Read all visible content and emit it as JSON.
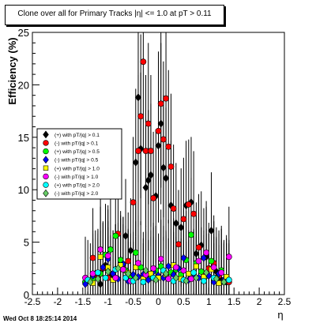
{
  "chart_data": {
    "type": "scatter",
    "title": "Clone  over all for Primary Tracks |η| <= 1.0 at pT > 0.11",
    "xlabel": "η",
    "ylabel": "Efficiency (%)",
    "xlim": [
      -2.5,
      2.5
    ],
    "ylim": [
      0,
      25
    ],
    "xticks": [
      "-2.5",
      "-2",
      "-1.5",
      "-1",
      "-0.5",
      "0",
      "0.5",
      "1",
      "1.5",
      "2",
      "2.5"
    ],
    "yticks": [
      "0",
      "5",
      "10",
      "15",
      "20",
      "25"
    ],
    "grid": false,
    "legend_position": "left-middle",
    "series": [
      {
        "name": "(+) with pT/|q| > 0.1",
        "color": "#000000",
        "marker": "diamond",
        "points": [
          [
            -1.45,
            1.2
          ],
          [
            -1.25,
            2.0
          ],
          [
            -1.15,
            1.0
          ],
          [
            -1.05,
            2.8
          ],
          [
            -0.95,
            1.7
          ],
          [
            -0.85,
            2.4
          ],
          [
            -0.75,
            3.0
          ],
          [
            -0.65,
            5.6
          ],
          [
            -0.55,
            4.2
          ],
          [
            -0.45,
            12.6
          ],
          [
            -0.4,
            18.8
          ],
          [
            -0.35,
            13.9
          ],
          [
            -0.25,
            10.2
          ],
          [
            -0.2,
            10.9
          ],
          [
            -0.15,
            11.4
          ],
          [
            -0.05,
            9.4
          ],
          [
            0.0,
            14.2
          ],
          [
            0.05,
            16.3
          ],
          [
            0.1,
            12.1
          ],
          [
            0.15,
            11.1
          ],
          [
            0.25,
            8.5
          ],
          [
            0.35,
            6.8
          ],
          [
            0.45,
            6.4
          ],
          [
            0.55,
            8.5
          ],
          [
            0.65,
            8.8
          ],
          [
            0.75,
            3.9
          ],
          [
            0.85,
            4.7
          ],
          [
            0.95,
            3.6
          ],
          [
            1.05,
            6.1
          ],
          [
            1.15,
            2.2
          ],
          [
            1.25,
            1.4
          ],
          [
            1.35,
            1.2
          ]
        ]
      },
      {
        "name": "(-) with pT/|q| > 0.1",
        "color": "#ff0000",
        "marker": "circle",
        "points": [
          [
            -1.45,
            1.2
          ],
          [
            -1.3,
            3.5
          ],
          [
            -1.2,
            1.8
          ],
          [
            -1.1,
            2.5
          ],
          [
            -1.0,
            1.6
          ],
          [
            -0.9,
            2.0
          ],
          [
            -0.8,
            5.8
          ],
          [
            -0.7,
            2.9
          ],
          [
            -0.6,
            3.2
          ],
          [
            -0.5,
            8.8
          ],
          [
            -0.4,
            13.7
          ],
          [
            -0.35,
            17.0
          ],
          [
            -0.3,
            22.2
          ],
          [
            -0.25,
            13.7
          ],
          [
            -0.2,
            16.3
          ],
          [
            -0.15,
            13.7
          ],
          [
            -0.1,
            9.2
          ],
          [
            0.0,
            15.6
          ],
          [
            0.05,
            18.2
          ],
          [
            0.1,
            14.8
          ],
          [
            0.15,
            18.7
          ],
          [
            0.2,
            14.1
          ],
          [
            0.25,
            12.2
          ],
          [
            0.3,
            8.2
          ],
          [
            0.4,
            4.8
          ],
          [
            0.5,
            7.2
          ],
          [
            0.6,
            8.6
          ],
          [
            0.7,
            7.7
          ],
          [
            0.8,
            4.5
          ],
          [
            0.9,
            2.0
          ],
          [
            1.0,
            2.5
          ],
          [
            1.1,
            3.0
          ],
          [
            1.2,
            1.8
          ],
          [
            1.3,
            1.3
          ],
          [
            1.4,
            1.2
          ]
        ]
      },
      {
        "name": "(+) with pT/|q| > 0.5",
        "color": "#00ff00",
        "marker": "circle",
        "points": [
          [
            -1.45,
            1.2
          ],
          [
            -1.3,
            1.5
          ],
          [
            -1.15,
            2.0
          ],
          [
            -1.05,
            3.8
          ],
          [
            -0.95,
            4.3
          ],
          [
            -0.85,
            5.6
          ],
          [
            -0.75,
            3.3
          ],
          [
            -0.65,
            2.3
          ],
          [
            -0.55,
            1.8
          ],
          [
            -0.45,
            4.0
          ],
          [
            -0.35,
            2.6
          ],
          [
            -0.25,
            2.0
          ],
          [
            -0.15,
            1.6
          ],
          [
            -0.05,
            2.3
          ],
          [
            0.05,
            2.7
          ],
          [
            0.15,
            1.7
          ],
          [
            0.25,
            2.1
          ],
          [
            0.35,
            2.4
          ],
          [
            0.45,
            1.9
          ],
          [
            0.55,
            3.3
          ],
          [
            0.65,
            5.7
          ],
          [
            0.75,
            3.0
          ],
          [
            0.85,
            2.2
          ],
          [
            0.95,
            1.8
          ],
          [
            1.05,
            3.2
          ],
          [
            1.15,
            1.6
          ],
          [
            1.25,
            2.3
          ],
          [
            1.35,
            1.5
          ]
        ]
      },
      {
        "name": "(-) with pT/|q| > 0.5",
        "color": "#0000ff",
        "marker": "diamond",
        "points": [
          [
            -1.45,
            1.0
          ],
          [
            -1.3,
            1.8
          ],
          [
            -1.2,
            2.0
          ],
          [
            -1.1,
            2.6
          ],
          [
            -1.0,
            3.4
          ],
          [
            -0.9,
            2.0
          ],
          [
            -0.8,
            1.5
          ],
          [
            -0.7,
            2.9
          ],
          [
            -0.6,
            1.3
          ],
          [
            -0.5,
            1.9
          ],
          [
            -0.4,
            1.7
          ],
          [
            -0.3,
            1.9
          ],
          [
            -0.2,
            1.4
          ],
          [
            -0.1,
            2.2
          ],
          [
            0.0,
            1.8
          ],
          [
            0.1,
            1.6
          ],
          [
            0.2,
            2.7
          ],
          [
            0.3,
            1.9
          ],
          [
            0.4,
            2.5
          ],
          [
            0.5,
            3.5
          ],
          [
            0.6,
            1.4
          ],
          [
            0.7,
            2.0
          ],
          [
            0.8,
            1.6
          ],
          [
            0.9,
            3.5
          ],
          [
            1.0,
            1.8
          ],
          [
            1.1,
            1.2
          ],
          [
            1.2,
            2.0
          ],
          [
            1.3,
            1.4
          ]
        ]
      },
      {
        "name": "(+) with pT/|q| > 1.0",
        "color": "#ffff00",
        "marker": "square",
        "points": [
          [
            -1.3,
            1.1
          ],
          [
            -1.15,
            3.6
          ],
          [
            -1.0,
            2.6
          ],
          [
            -0.9,
            1.4
          ],
          [
            -0.75,
            2.8
          ],
          [
            -0.6,
            2.1
          ],
          [
            -0.45,
            2.6
          ],
          [
            -0.3,
            1.5
          ],
          [
            -0.15,
            2.0
          ],
          [
            0.0,
            1.6
          ],
          [
            0.15,
            1.9
          ],
          [
            0.3,
            2.8
          ],
          [
            0.45,
            1.5
          ],
          [
            0.6,
            2.0
          ],
          [
            0.75,
            2.7
          ],
          [
            0.9,
            1.7
          ],
          [
            1.05,
            2.4
          ],
          [
            1.2,
            1.1
          ],
          [
            1.35,
            1.7
          ]
        ]
      },
      {
        "name": "(-) with pT/|q| > 1.0",
        "color": "#ff00ff",
        "marker": "circle",
        "points": [
          [
            -1.45,
            1.6
          ],
          [
            -1.3,
            2.0
          ],
          [
            -1.15,
            4.3
          ],
          [
            -1.0,
            3.7
          ],
          [
            -0.85,
            1.6
          ],
          [
            -0.7,
            2.4
          ],
          [
            -0.55,
            1.3
          ],
          [
            -0.4,
            3.0
          ],
          [
            -0.25,
            1.9
          ],
          [
            -0.1,
            2.5
          ],
          [
            0.05,
            3.4
          ],
          [
            0.2,
            1.5
          ],
          [
            0.35,
            2.6
          ],
          [
            0.5,
            2.3
          ],
          [
            0.65,
            1.5
          ],
          [
            0.8,
            3.2
          ],
          [
            0.95,
            4.0
          ],
          [
            1.1,
            2.6
          ],
          [
            1.25,
            2.1
          ],
          [
            1.4,
            3.6
          ]
        ]
      },
      {
        "name": "(+) with pT/|q| > 2.0",
        "color": "#00ffff",
        "marker": "circle",
        "points": [
          [
            -1.4,
            1.4
          ],
          [
            -1.2,
            2.1
          ],
          [
            -1.05,
            1.6
          ],
          [
            -0.85,
            2.4
          ],
          [
            -0.65,
            1.6
          ],
          [
            -0.5,
            1.3
          ],
          [
            -0.3,
            1.2
          ],
          [
            -0.1,
            1.6
          ],
          [
            0.1,
            2.3
          ],
          [
            0.3,
            1.3
          ],
          [
            0.5,
            1.4
          ],
          [
            0.7,
            2.1
          ],
          [
            0.9,
            1.3
          ],
          [
            1.1,
            1.6
          ],
          [
            1.3,
            1.2
          ],
          [
            1.4,
            1.4
          ]
        ]
      },
      {
        "name": "(-) with pT/|q| > 2.0",
        "color": "#66cc66",
        "marker": "diamond",
        "points": [
          [
            -1.35,
            1.2
          ],
          [
            -1.2,
            1.5
          ],
          [
            -1.0,
            2.2
          ],
          [
            -0.8,
            2.5
          ],
          [
            -0.6,
            2.0
          ],
          [
            -0.45,
            1.6
          ],
          [
            -0.25,
            2.3
          ],
          [
            -0.05,
            1.4
          ],
          [
            0.15,
            2.0
          ],
          [
            0.35,
            1.6
          ],
          [
            0.55,
            1.3
          ],
          [
            0.75,
            1.6
          ],
          [
            0.95,
            2.1
          ],
          [
            1.15,
            1.5
          ],
          [
            1.3,
            1.2
          ]
        ]
      }
    ]
  },
  "footer": {
    "timestamp": "Wed Oct  8 18:25:14 2014"
  }
}
